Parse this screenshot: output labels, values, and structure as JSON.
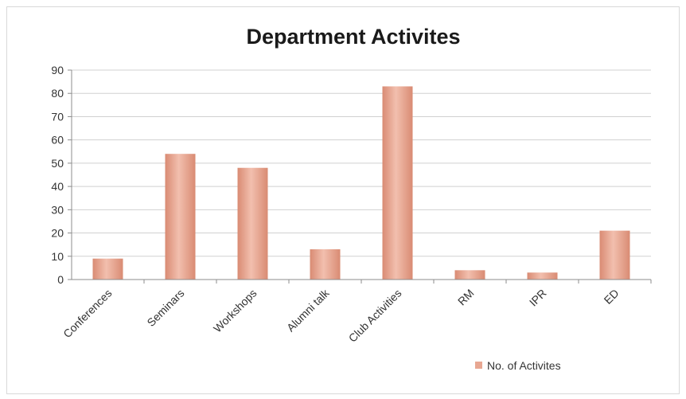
{
  "chart_data": {
    "type": "bar",
    "title": "Department Activites",
    "xlabel": "",
    "ylabel": "",
    "categories": [
      "Conferences",
      "Seminars",
      "Workshops",
      "Alumni talk",
      "Club Activities",
      "RM",
      "IPR",
      "ED"
    ],
    "series": [
      {
        "name": "No. of Activites",
        "values": [
          9,
          54,
          48,
          13,
          83,
          4,
          3,
          21
        ]
      }
    ],
    "ylim": [
      0,
      90
    ],
    "yticks": [
      0,
      10,
      20,
      30,
      40,
      50,
      60,
      70,
      80,
      90
    ],
    "grid": true,
    "legend": "bottom-right",
    "colors": {
      "bar": "#e8a792",
      "bar_dark": "#d98b73",
      "grid": "#d0d0d0",
      "axis": "#8c8c8c"
    }
  }
}
